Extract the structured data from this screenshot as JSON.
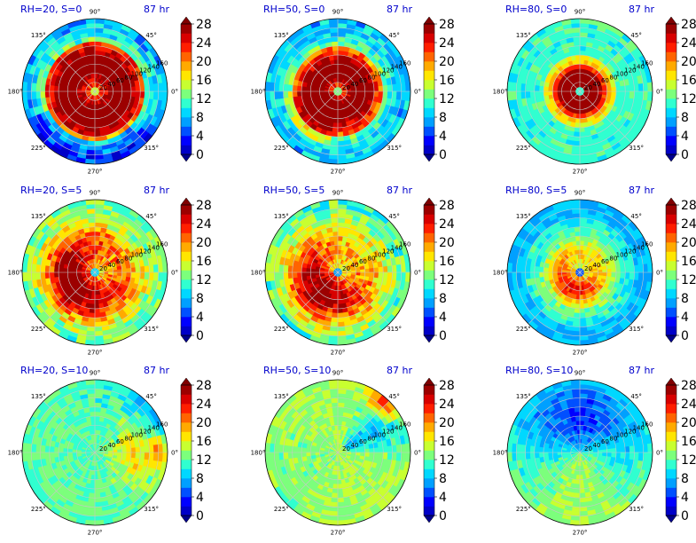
{
  "figure": {
    "time_label": "87 hr",
    "colorbar": {
      "ticks": [
        "0",
        "4",
        "8",
        "12",
        "16",
        "20",
        "24",
        "28"
      ],
      "levels": [
        0,
        2,
        4,
        6,
        8,
        10,
        12,
        14,
        16,
        18,
        20,
        22,
        24,
        26,
        28
      ],
      "colors": [
        "#0000c8",
        "#0000ff",
        "#0050ff",
        "#00a0ff",
        "#00d8ff",
        "#30ffd0",
        "#7cff7c",
        "#c8ff30",
        "#ffe600",
        "#ffaa00",
        "#ff6400",
        "#ff1e00",
        "#d80000",
        "#9c0000"
      ]
    },
    "angle_labels": [
      "90°",
      "45°",
      "0°",
      "315°",
      "270°",
      "225°",
      "180°",
      "135°"
    ],
    "radial_labels": [
      "20",
      "40",
      "60",
      "80",
      "100",
      "120",
      "140",
      "160"
    ]
  },
  "chart_data": [
    {
      "type": "polar-contour",
      "title": "RH=20, S=0",
      "time": "87 hr",
      "rlim": [
        0,
        160
      ],
      "cmap_range": [
        0,
        28
      ],
      "pattern": "strong eyewall, max >28 in ring r≈20-110"
    },
    {
      "type": "polar-contour",
      "title": "RH=50, S=0",
      "time": "87 hr",
      "rlim": [
        0,
        160
      ],
      "cmap_range": [
        0,
        28
      ],
      "pattern": "strong ring r≈15-95"
    },
    {
      "type": "polar-contour",
      "title": "RH=80, S=0",
      "time": "87 hr",
      "rlim": [
        0,
        160
      ],
      "cmap_range": [
        0,
        28
      ],
      "pattern": "compact core r≈10-55"
    },
    {
      "type": "polar-contour",
      "title": "RH=20, S=5",
      "time": "87 hr",
      "rlim": [
        0,
        160
      ],
      "cmap_range": [
        0,
        28
      ],
      "pattern": "asymmetric, strongest west side"
    },
    {
      "type": "polar-contour",
      "title": "RH=50, S=5",
      "time": "87 hr",
      "rlim": [
        0,
        160
      ],
      "cmap_range": [
        0,
        28
      ],
      "pattern": "asymmetric, strongest south-west"
    },
    {
      "type": "polar-contour",
      "title": "RH=80, S=5",
      "time": "87 hr",
      "rlim": [
        0,
        160
      ],
      "cmap_range": [
        0,
        28
      ],
      "pattern": "moderate core, weaker outer region"
    },
    {
      "type": "polar-contour",
      "title": "RH=20, S=10",
      "time": "87 hr",
      "rlim": [
        0,
        160
      ],
      "cmap_range": [
        0,
        28
      ],
      "pattern": "weak, band east with local max"
    },
    {
      "type": "polar-contour",
      "title": "RH=50, S=10",
      "time": "87 hr",
      "rlim": [
        0,
        160
      ],
      "cmap_range": [
        0,
        28
      ],
      "pattern": "weak, diagonal band to north-east"
    },
    {
      "type": "polar-contour",
      "title": "RH=80, S=10",
      "time": "87 hr",
      "rlim": [
        0,
        160
      ],
      "cmap_range": [
        0,
        28
      ],
      "pattern": "very weak north, moderate south"
    }
  ]
}
